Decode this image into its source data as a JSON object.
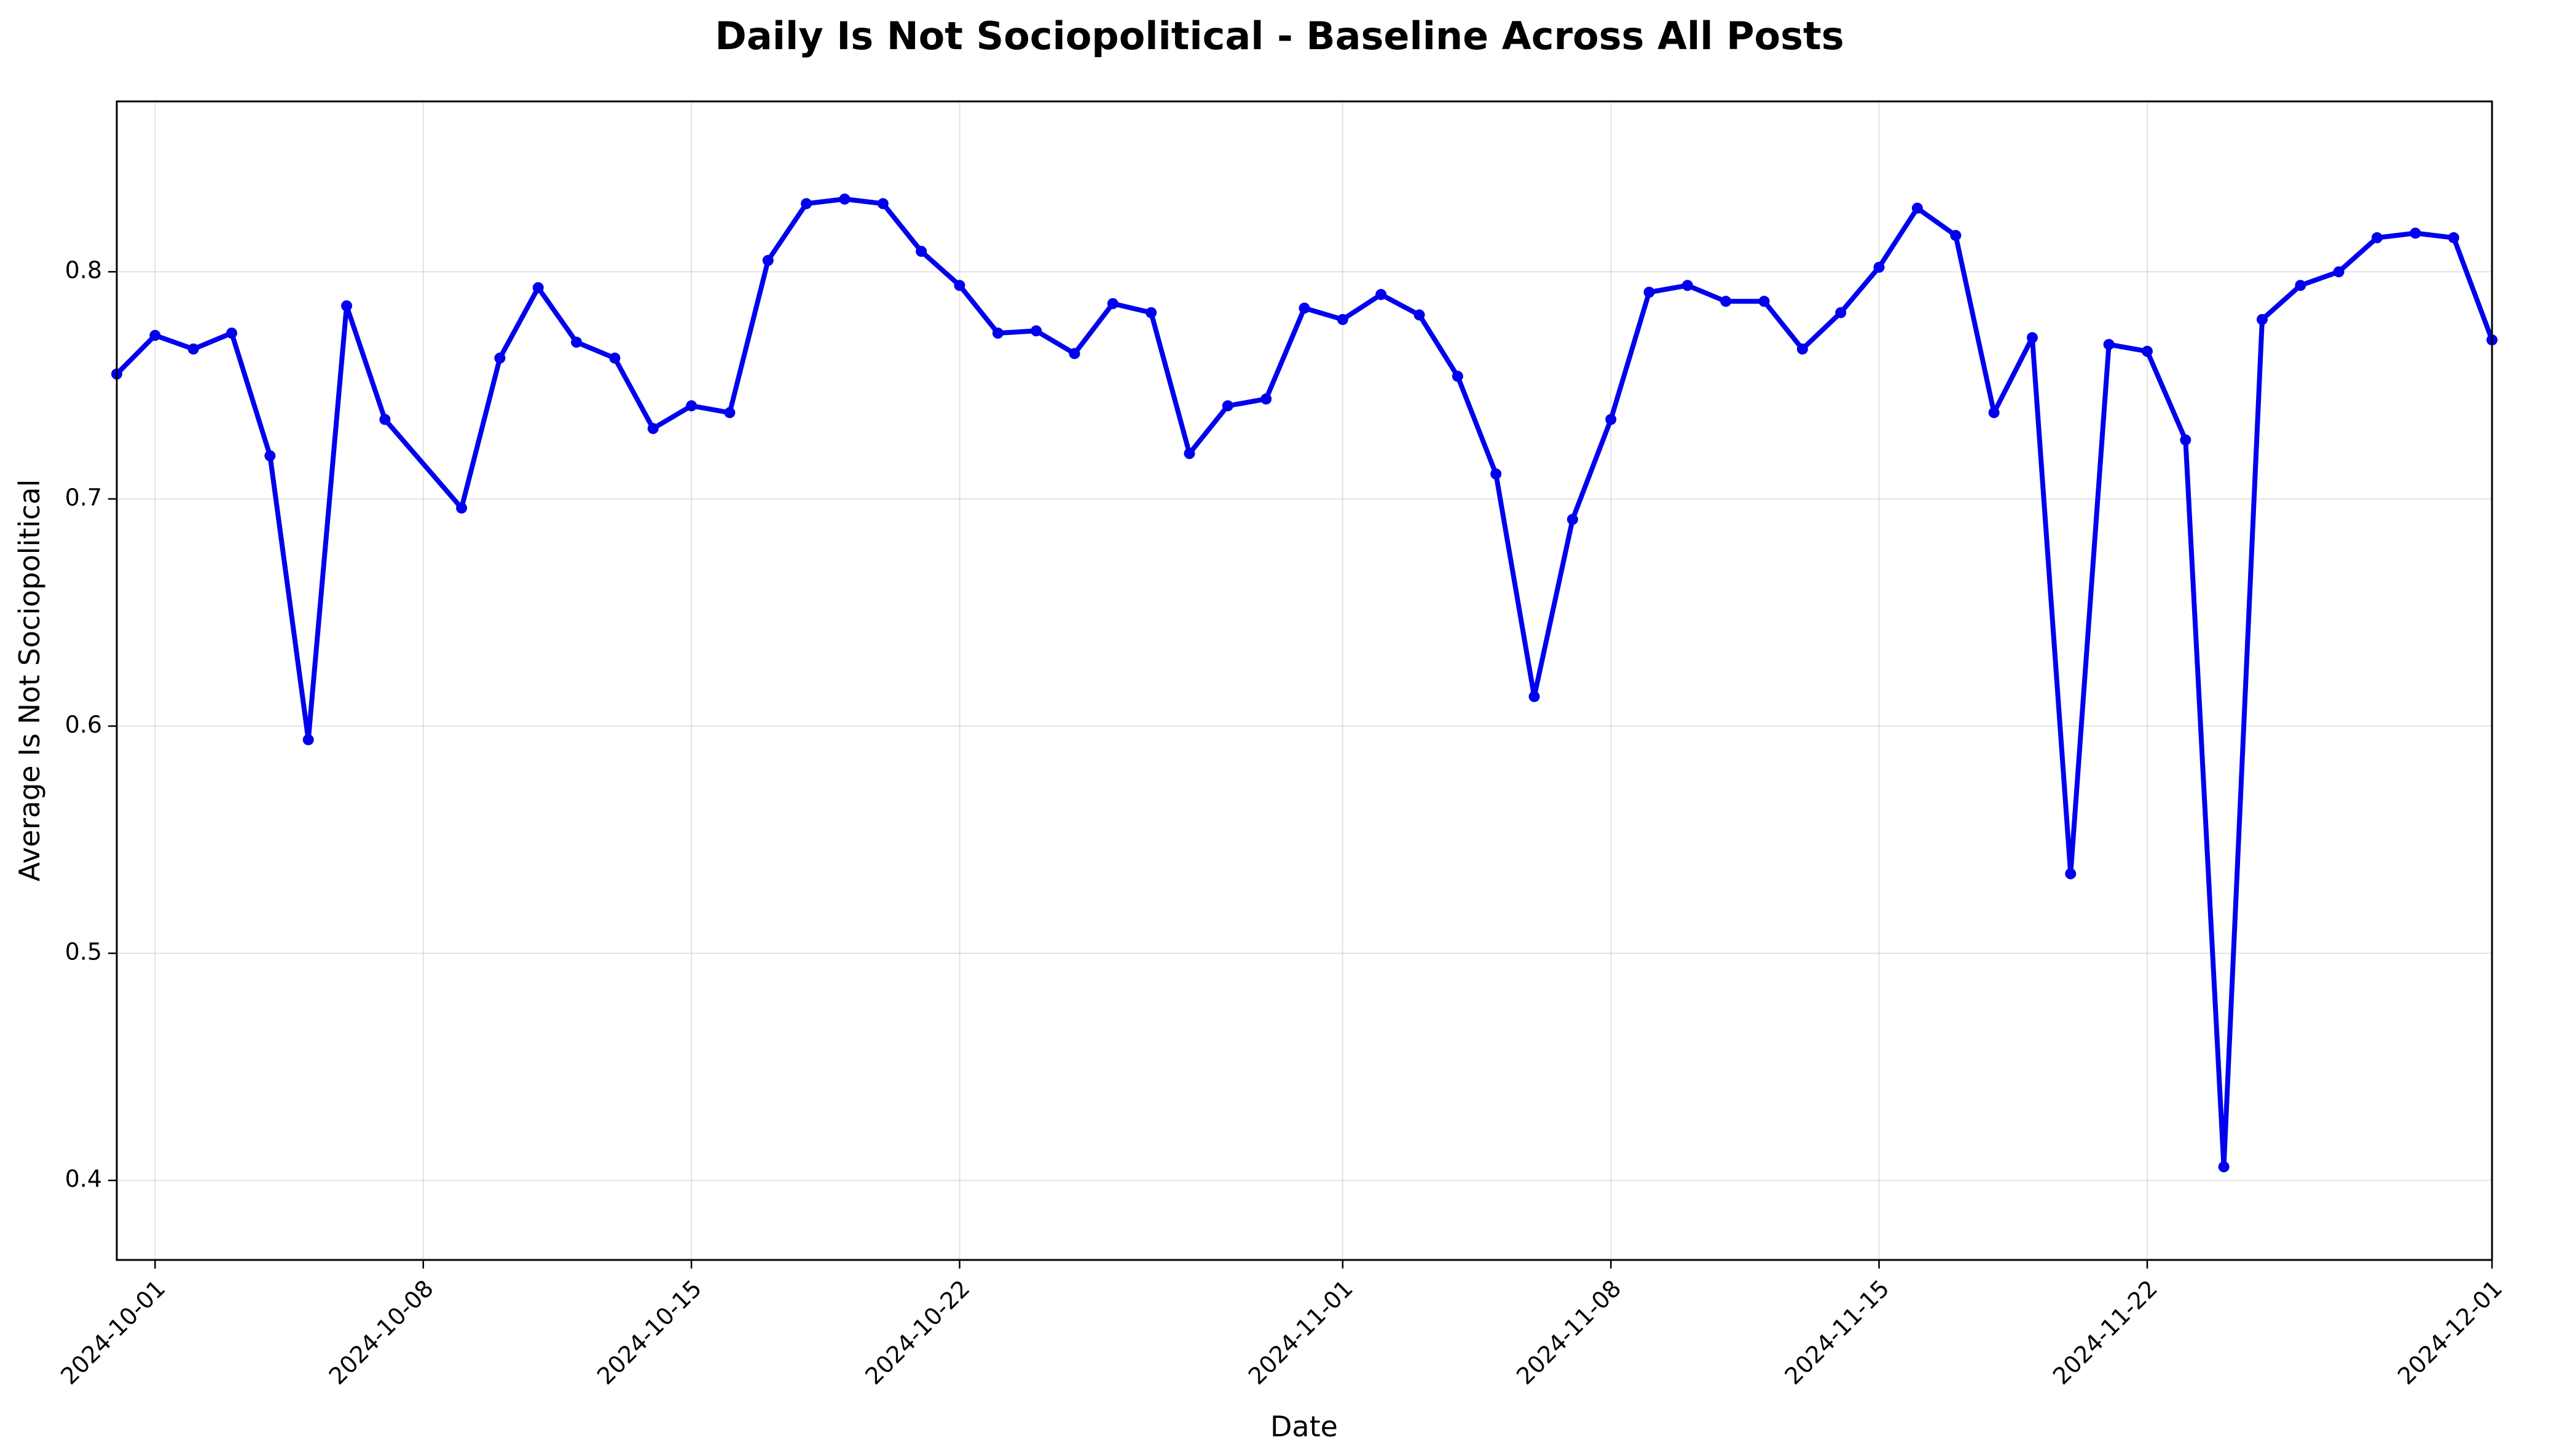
{
  "chart_data": {
    "type": "line",
    "title": "Daily Is Not Sociopolitical - Baseline Across All Posts",
    "xlabel": "Date",
    "ylabel": "Average Is Not Sociopolitical",
    "xlim": [
      "2024-09-30",
      "2024-12-01"
    ],
    "ylim": [
      0.365,
      0.875
    ],
    "x_ticks": [
      "2024-10-01",
      "2024-10-08",
      "2024-10-15",
      "2024-10-22",
      "2024-11-01",
      "2024-11-08",
      "2024-11-15",
      "2024-11-22",
      "2024-12-01"
    ],
    "y_ticks": [
      0.4,
      0.5,
      0.6,
      0.7,
      0.8
    ],
    "grid": true,
    "legend": "none",
    "series_color": "#0000ee",
    "series": [
      {
        "x": [
          "2024-09-30",
          "2024-10-01",
          "2024-10-02",
          "2024-10-03",
          "2024-10-04",
          "2024-10-05",
          "2024-10-06",
          "2024-10-07",
          "2024-10-09",
          "2024-10-10",
          "2024-10-11",
          "2024-10-12",
          "2024-10-13",
          "2024-10-14",
          "2024-10-15",
          "2024-10-16",
          "2024-10-17",
          "2024-10-18",
          "2024-10-19",
          "2024-10-20",
          "2024-10-21",
          "2024-10-22",
          "2024-10-23",
          "2024-10-24",
          "2024-10-25",
          "2024-10-26",
          "2024-10-27",
          "2024-10-28",
          "2024-10-29",
          "2024-10-30",
          "2024-10-31",
          "2024-11-01",
          "2024-11-02",
          "2024-11-03",
          "2024-11-04",
          "2024-11-05",
          "2024-11-06",
          "2024-11-07",
          "2024-11-08",
          "2024-11-09",
          "2024-11-10",
          "2024-11-11",
          "2024-11-12",
          "2024-11-13",
          "2024-11-14",
          "2024-11-15",
          "2024-11-16",
          "2024-11-17",
          "2024-11-18",
          "2024-11-19",
          "2024-11-20",
          "2024-11-21",
          "2024-11-22",
          "2024-11-23",
          "2024-11-24",
          "2024-11-25",
          "2024-11-26",
          "2024-11-27",
          "2024-11-28",
          "2024-11-29",
          "2024-11-30",
          "2024-12-01"
        ],
        "values": [
          0.755,
          0.772,
          0.766,
          0.773,
          0.719,
          0.594,
          0.785,
          0.735,
          0.696,
          0.762,
          0.793,
          0.769,
          0.762,
          0.731,
          0.741,
          0.738,
          0.805,
          0.83,
          0.832,
          0.83,
          0.809,
          0.794,
          0.773,
          0.774,
          0.764,
          0.786,
          0.782,
          0.72,
          0.741,
          0.744,
          0.784,
          0.779,
          0.79,
          0.781,
          0.754,
          0.711,
          0.613,
          0.691,
          0.735,
          0.791,
          0.794,
          0.787,
          0.787,
          0.766,
          0.782,
          0.802,
          0.828,
          0.816,
          0.738,
          0.771,
          0.535,
          0.768,
          0.765,
          0.726,
          0.406,
          0.779,
          0.794,
          0.8,
          0.815,
          0.817,
          0.815,
          0.77
        ]
      }
    ]
  }
}
